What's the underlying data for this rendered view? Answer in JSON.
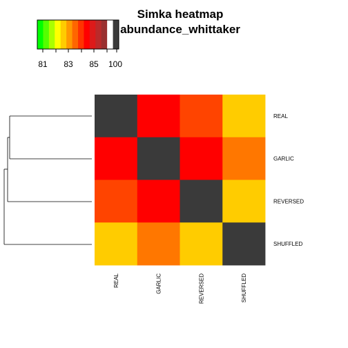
{
  "chart_data": {
    "type": "heatmap",
    "title": "Simka heatmap",
    "subtitle": "abundance_whittaker",
    "rows": [
      "REAL",
      "GARLIC",
      "REVERSED",
      "SHUFFLED"
    ],
    "columns": [
      "REAL",
      "GARLIC",
      "REVERSED",
      "SHUFFLED"
    ],
    "values": [
      [
        100,
        85,
        84,
        82
      ],
      [
        85,
        100,
        85,
        83.5
      ],
      [
        84,
        85,
        100,
        82
      ],
      [
        82,
        83.5,
        82,
        100
      ]
    ],
    "legend": {
      "position": "top-left",
      "tick_labels": [
        "81",
        "83",
        "85",
        "100"
      ],
      "color_bins": [
        "#00ff00",
        "#55ff00",
        "#aaff00",
        "#ffff00",
        "#ffcc00",
        "#ff9900",
        "#ff6600",
        "#ff3300",
        "#ff0000",
        "#dd1a1a",
        "#bb2a2a",
        "#993030",
        "#ffffff",
        "#3a3a3a"
      ]
    },
    "cell_colors": {
      "82": "#ffcc00",
      "83.5": "#ff7700",
      "84": "#ff4400",
      "85": "#ff0000",
      "100": "#3a3a3a"
    },
    "dendrogram": "left"
  }
}
